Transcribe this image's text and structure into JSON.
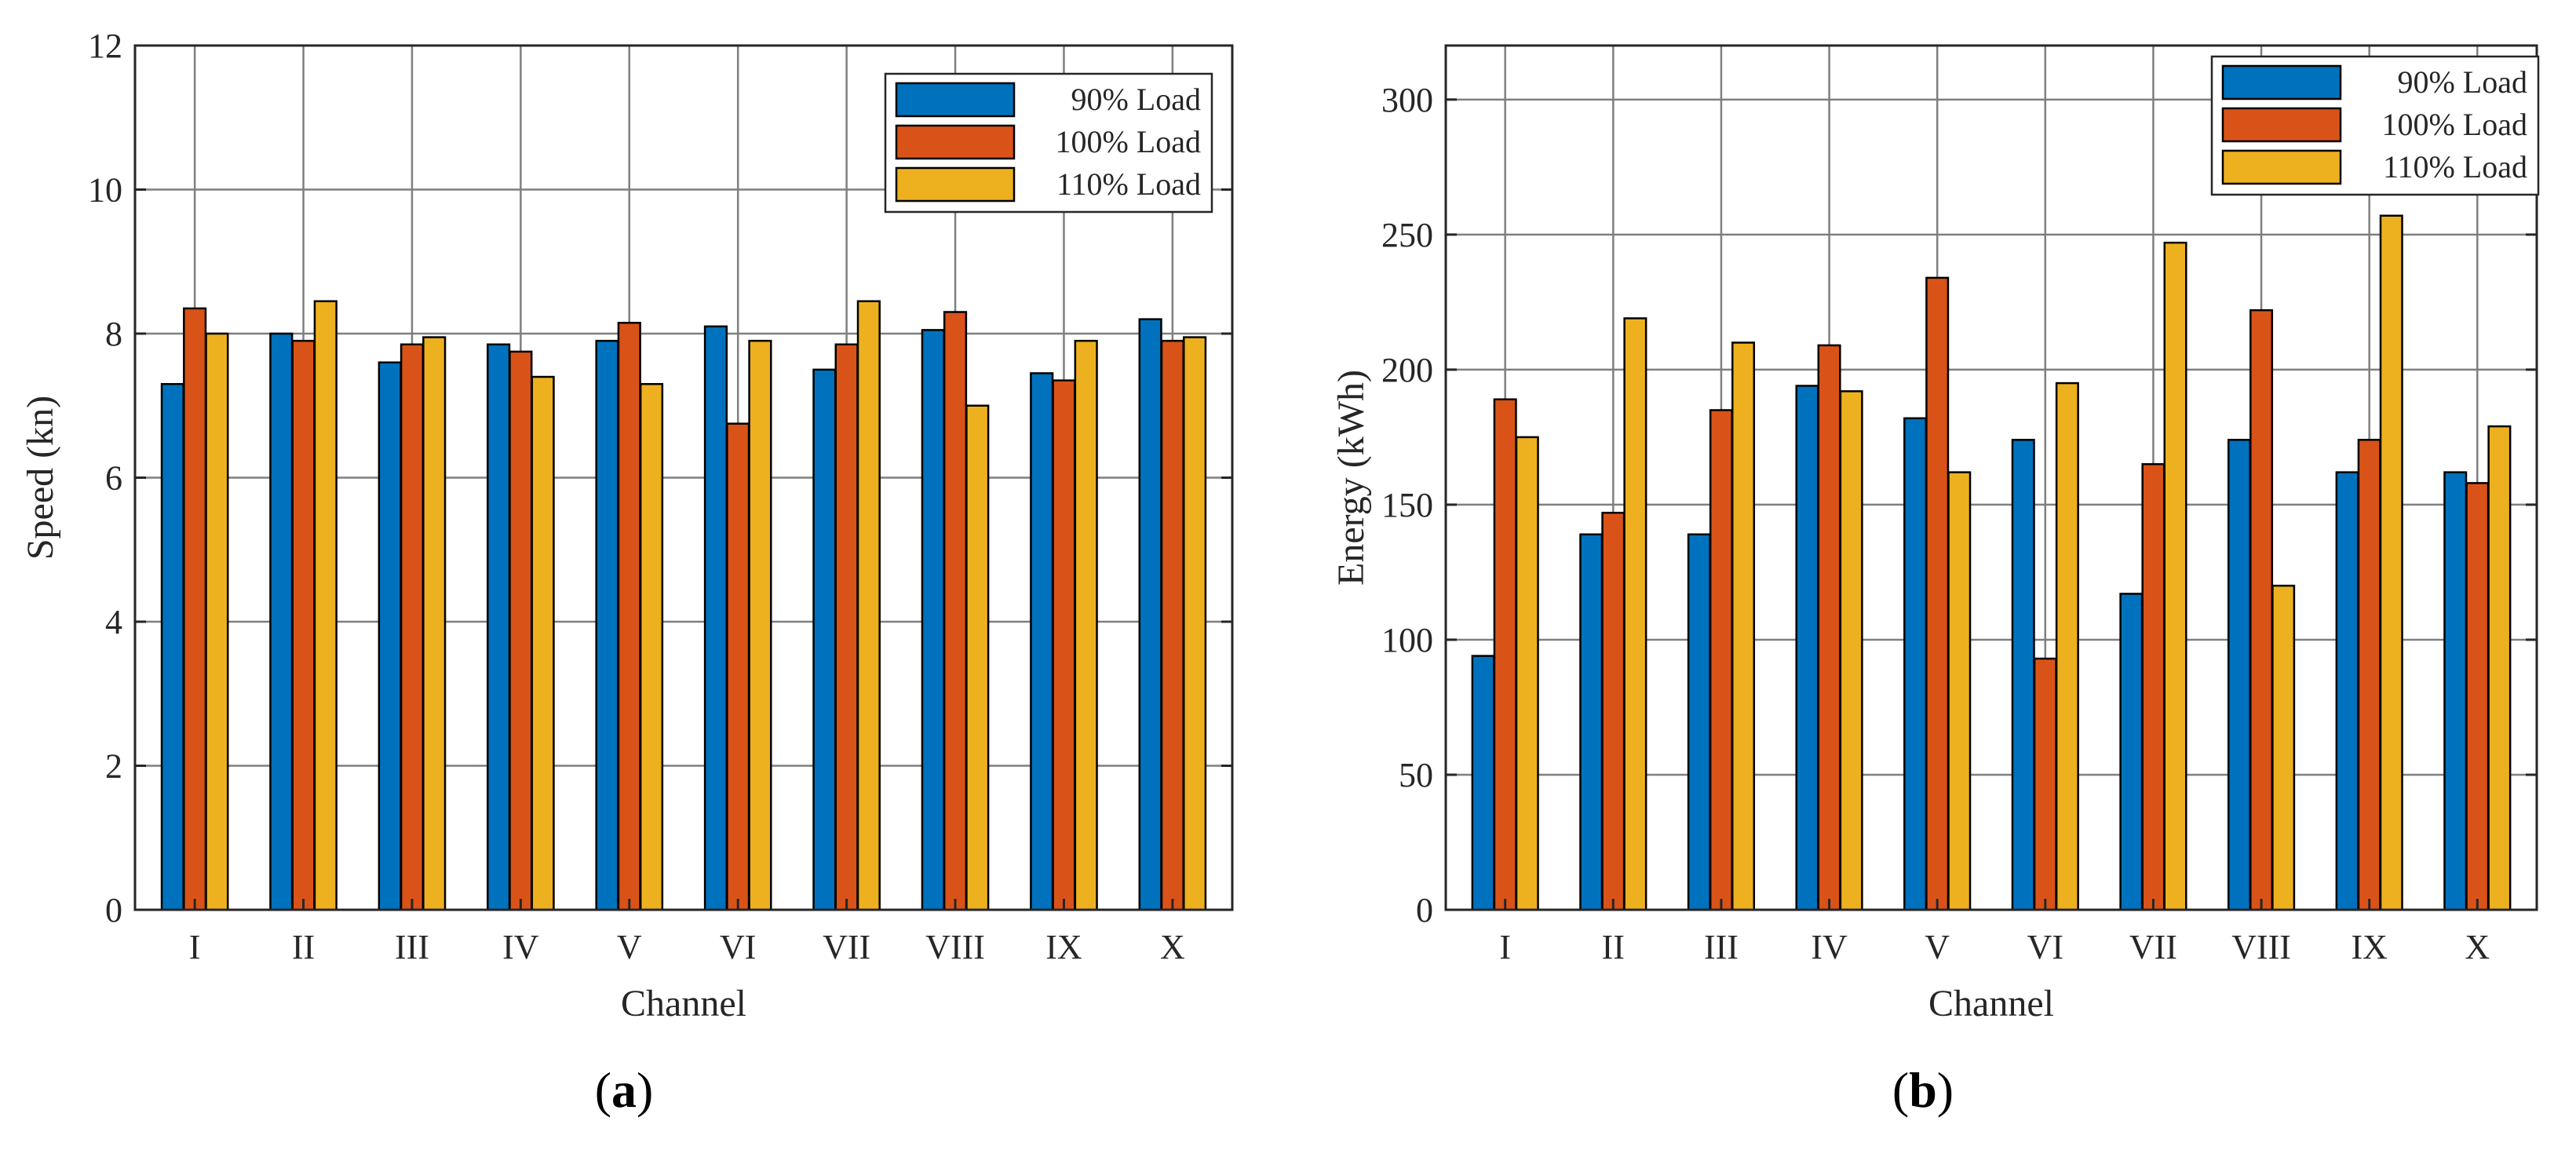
{
  "colors": {
    "series1": "#0072BD",
    "series2": "#D95319",
    "series3": "#EDB120",
    "grid": "#7f7f7f",
    "axis": "#262626"
  },
  "panels": [
    {
      "open": "(",
      "letter": "a",
      "close": ")"
    },
    {
      "open": "(",
      "letter": "b",
      "close": ")"
    }
  ],
  "chart_data": [
    {
      "type": "bar",
      "title": "",
      "xlabel": "Channel",
      "ylabel": "Speed (kn)",
      "ylim": [
        0,
        12
      ],
      "yticks": [
        0,
        2,
        4,
        6,
        8,
        10,
        12
      ],
      "grid": true,
      "legend_position": "top-right",
      "categories": [
        "I",
        "II",
        "III",
        "IV",
        "V",
        "VI",
        "VII",
        "VIII",
        "IX",
        "X"
      ],
      "series": [
        {
          "name": "90% Load",
          "values": [
            7.3,
            8.0,
            7.6,
            7.85,
            7.9,
            8.1,
            7.5,
            8.05,
            7.45,
            8.2
          ]
        },
        {
          "name": "100% Load",
          "values": [
            8.35,
            7.9,
            7.85,
            7.75,
            8.15,
            6.75,
            7.85,
            8.3,
            7.35,
            7.9
          ]
        },
        {
          "name": "110% Load",
          "values": [
            8.0,
            8.45,
            7.95,
            7.4,
            7.3,
            7.9,
            8.45,
            7.0,
            7.9,
            7.95
          ]
        }
      ]
    },
    {
      "type": "bar",
      "title": "",
      "xlabel": "Channel",
      "ylabel": "Energy (kWh)",
      "ylim": [
        0,
        320
      ],
      "yticks": [
        0,
        50,
        100,
        150,
        200,
        250,
        300
      ],
      "grid": true,
      "legend_position": "top-right",
      "categories": [
        "I",
        "II",
        "III",
        "IV",
        "V",
        "VI",
        "VII",
        "VIII",
        "IX",
        "X"
      ],
      "series": [
        {
          "name": "90% Load",
          "values": [
            94,
            139,
            139,
            194,
            182,
            174,
            117,
            174,
            162,
            162
          ]
        },
        {
          "name": "100% Load",
          "values": [
            189,
            147,
            185,
            209,
            234,
            93,
            165,
            222,
            174,
            158
          ]
        },
        {
          "name": "110% Load",
          "values": [
            175,
            219,
            210,
            192,
            162,
            195,
            247,
            120,
            257,
            179
          ]
        }
      ]
    }
  ]
}
